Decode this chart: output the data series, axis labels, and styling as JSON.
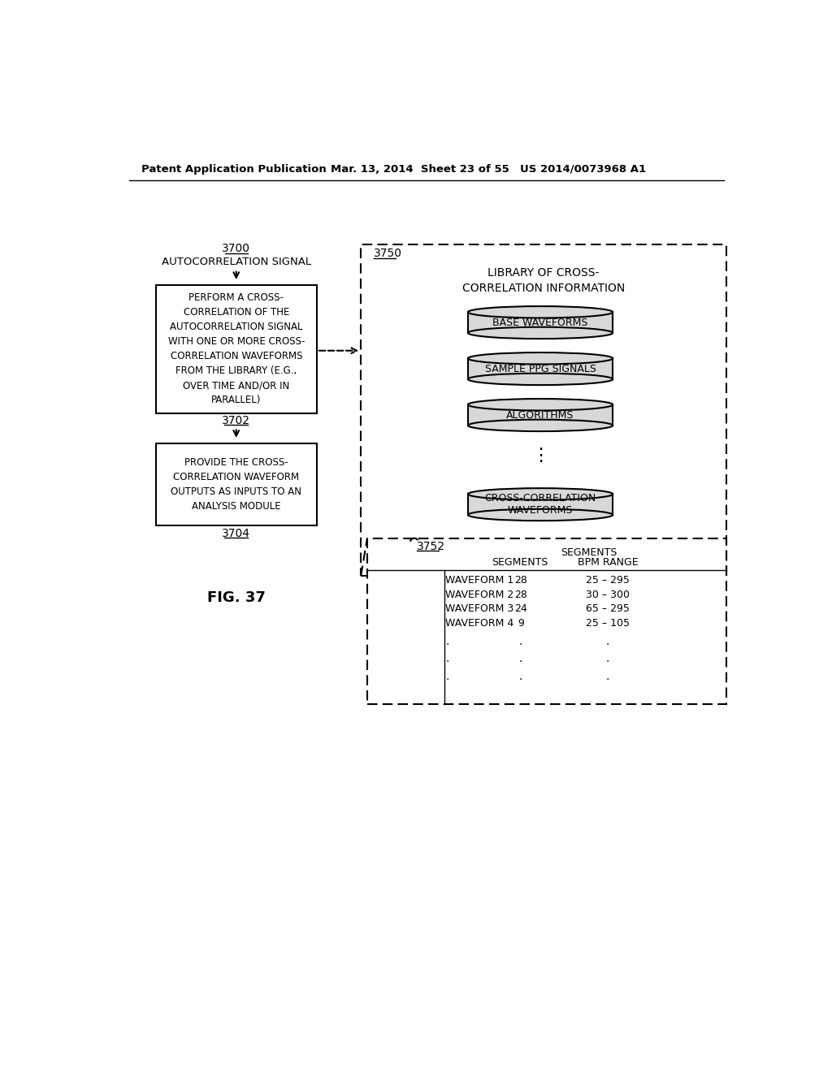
{
  "bg_color": "#ffffff",
  "header_text": [
    "Patent Application Publication",
    "Mar. 13, 2014  Sheet 23 of 55",
    "US 2014/0073968 A1"
  ],
  "fig_label": "FIG. 37",
  "label_3700": "3700",
  "label_autocorr": "AUTOCORRELATION SIGNAL",
  "box1_text": "PERFORM A CROSS-\nCORRELATION OF THE\nAUTOCORRELATION SIGNAL\nWITH ONE OR MORE CROSS-\nCORRELATION WAVEFORMS\nFROM THE LIBRARY (E.G.,\nOVER TIME AND/OR IN\nPARALLEL)",
  "box1_label": "3702",
  "box2_text": "PROVIDE THE CROSS-\nCORRELATION WAVEFORM\nOUTPUTS AS INPUTS TO AN\nANALYSIS MODULE",
  "box2_label": "3704",
  "library_label": "3750",
  "library_title": "LIBRARY OF CROSS-\nCORRELATION INFORMATION",
  "cylinder_labels": [
    "BASE WAVEFORMS",
    "SAMPLE PPG SIGNALS",
    "ALGORITHMS",
    "CROSS-CORRELATION\nWAVEFORMS"
  ],
  "table_label": "3752",
  "table_header1": "SEGMENTS",
  "table_header2": "SEGMENTS",
  "table_header3": "BPM RANGE",
  "table_rows": [
    [
      "WAVEFORM 1",
      "28",
      "25 – 295"
    ],
    [
      "WAVEFORM 2",
      "28",
      "30 – 300"
    ],
    [
      "WAVEFORM 3",
      "24",
      "65 – 295"
    ],
    [
      "WAVEFORM 4",
      "9",
      "25 – 105"
    ]
  ]
}
